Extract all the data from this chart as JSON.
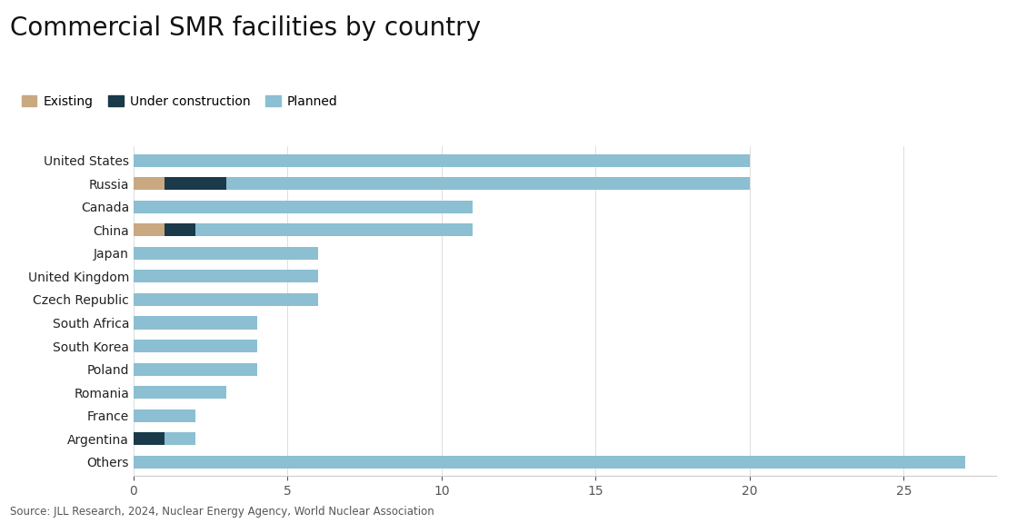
{
  "title": "Commercial SMR facilities by country",
  "source": "Source: JLL Research, 2024, Nuclear Energy Agency, World Nuclear Association",
  "categories": [
    "United States",
    "Russia",
    "Canada",
    "China",
    "Japan",
    "United Kingdom",
    "Czech Republic",
    "South Africa",
    "South Korea",
    "Poland",
    "Romania",
    "France",
    "Argentina",
    "Others"
  ],
  "existing": [
    0,
    1,
    0,
    1,
    0,
    0,
    0,
    0,
    0,
    0,
    0,
    0,
    0,
    0
  ],
  "under_construction": [
    0,
    2,
    0,
    1,
    0,
    0,
    0,
    0,
    0,
    0,
    0,
    0,
    1,
    0
  ],
  "planned": [
    20,
    17,
    11,
    9,
    6,
    6,
    6,
    4,
    4,
    4,
    3,
    2,
    1,
    27
  ],
  "color_existing": "#c9a882",
  "color_under": "#1a3a4a",
  "color_planned": "#8bbfd1",
  "legend_labels": [
    "Existing",
    "Under construction",
    "Planned"
  ],
  "xlim": [
    0,
    28
  ],
  "xticks": [
    0,
    5,
    10,
    15,
    20,
    25
  ],
  "background_color": "#ffffff",
  "title_fontsize": 20,
  "label_fontsize": 10,
  "tick_fontsize": 10,
  "source_fontsize": 8.5
}
